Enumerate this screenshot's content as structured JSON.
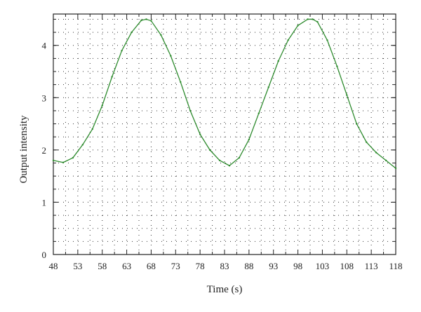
{
  "chart_data": {
    "type": "line",
    "title": "",
    "xlabel": "Time (s)",
    "ylabel": "Output intensity",
    "xlim": [
      48,
      118
    ],
    "ylim": [
      0,
      4.6
    ],
    "x_ticks": [
      48,
      53,
      58,
      63,
      68,
      73,
      78,
      83,
      88,
      93,
      98,
      103,
      108,
      113,
      118
    ],
    "y_ticks": [
      0,
      1,
      2,
      3,
      4
    ],
    "grid": "dotted",
    "legend": "none",
    "series": [
      {
        "color": "#2e8b2e",
        "x": [
          48,
          50,
          52,
          54,
          56,
          58,
          60,
          62,
          64,
          66,
          67,
          68,
          70,
          72,
          74,
          76,
          78,
          80,
          82,
          84,
          86,
          88,
          90,
          92,
          94,
          96,
          98,
          100,
          101,
          102,
          104,
          106,
          108,
          110,
          112,
          114,
          116,
          118
        ],
        "values": [
          1.8,
          1.76,
          1.85,
          2.1,
          2.4,
          2.85,
          3.4,
          3.9,
          4.25,
          4.48,
          4.5,
          4.47,
          4.2,
          3.8,
          3.3,
          2.75,
          2.3,
          2.0,
          1.8,
          1.7,
          1.85,
          2.2,
          2.7,
          3.2,
          3.7,
          4.1,
          4.38,
          4.5,
          4.5,
          4.45,
          4.1,
          3.6,
          3.05,
          2.5,
          2.15,
          1.95,
          1.8,
          1.65
        ]
      }
    ]
  }
}
